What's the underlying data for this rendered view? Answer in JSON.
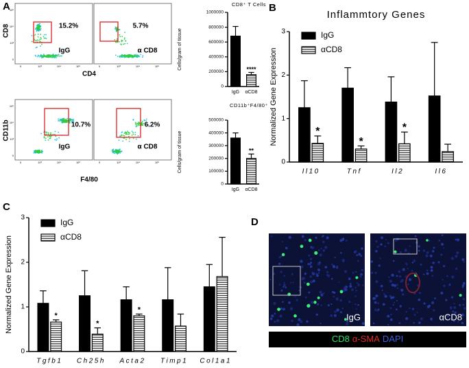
{
  "panels": [
    "A",
    "B",
    "C",
    "D"
  ],
  "flow": {
    "ticks": [
      "0",
      "10³",
      "10⁴",
      "10⁵"
    ],
    "rows": [
      {
        "ylabel": "CD8",
        "xlabel": "CD4"
      },
      {
        "ylabel": "CD11b",
        "xlabel": "F4/80"
      }
    ],
    "plots": [
      {
        "gate": "15.2%",
        "label": "IgG"
      },
      {
        "gate": "5.7%",
        "label": "α CD8"
      },
      {
        "gate": "10.7%",
        "label": "IgG"
      },
      {
        "gate": "6.2%",
        "label": "α CD8"
      }
    ]
  },
  "chart_data": [
    {
      "type": "bar",
      "title": "CD8⁺ T Cells",
      "ylabel": "Cells/gram of tissue",
      "categories": [
        "IgG",
        "αCD8"
      ],
      "values": [
        680000,
        160000
      ],
      "errors": [
        130000,
        30000
      ],
      "significance": [
        null,
        "****"
      ],
      "colors": [
        "#000000",
        "#ffffff"
      ],
      "patterns": [
        null,
        "horizontal-lines"
      ],
      "ylim": [
        0,
        1000000
      ],
      "yticks": [
        0,
        200000,
        400000,
        600000,
        800000,
        1000000
      ]
    },
    {
      "type": "bar",
      "title": "CD11b⁺F4/80⁺",
      "ylabel": "Cells/gram of tissue",
      "categories": [
        "IgG",
        "αCD8"
      ],
      "values": [
        360000,
        200000
      ],
      "errors": [
        40000,
        35000
      ],
      "significance": [
        null,
        "**"
      ],
      "colors": [
        "#000000",
        "#ffffff"
      ],
      "patterns": [
        null,
        "horizontal-lines"
      ],
      "ylim": [
        0,
        500000
      ],
      "yticks": [
        0,
        100000,
        200000,
        300000,
        400000,
        500000
      ]
    },
    {
      "type": "grouped_bar",
      "title": "Inflammtory Genes",
      "ylabel": "Normalized Gene Expression",
      "categories": [
        "Il10",
        "Tnf",
        "Il2",
        "Il6"
      ],
      "legend": "upper left",
      "series": [
        {
          "name": "IgG",
          "color": "#000000",
          "pattern": null,
          "values": [
            1.25,
            1.7,
            1.38,
            1.52
          ],
          "errors": [
            0.62,
            0.47,
            0.58,
            1.23
          ],
          "significance": [
            null,
            null,
            null,
            null
          ]
        },
        {
          "name": "αCD8",
          "color": "#ffffff",
          "pattern": "horizontal-lines",
          "values": [
            0.43,
            0.3,
            0.42,
            0.24
          ],
          "errors": [
            0.17,
            0.07,
            0.27,
            0.17
          ],
          "significance": [
            "*",
            "*",
            "*",
            null
          ]
        }
      ],
      "ylim": [
        0,
        3
      ],
      "yticks": [
        0,
        1,
        2,
        3
      ]
    },
    {
      "type": "grouped_bar",
      "ylabel": "Normalized Gene Expression",
      "categories": [
        "Tgfb1",
        "Ch25h",
        "Acta2",
        "Timp1",
        "Col1a1"
      ],
      "legend": "upper left",
      "series": [
        {
          "name": "IgG",
          "color": "#000000",
          "pattern": null,
          "values": [
            1.08,
            1.25,
            1.16,
            1.16,
            1.45
          ],
          "errors": [
            0.28,
            0.56,
            0.29,
            0.72,
            0.5
          ],
          "significance": [
            null,
            null,
            null,
            null,
            null
          ]
        },
        {
          "name": "αCD8",
          "color": "#ffffff",
          "pattern": "horizontal-lines",
          "values": [
            0.66,
            0.39,
            0.8,
            0.57,
            1.68
          ],
          "errors": [
            0.05,
            0.14,
            0.04,
            0.27,
            0.88
          ],
          "significance": [
            "*",
            "*",
            "*",
            null,
            null
          ]
        }
      ],
      "ylim": [
        0,
        3
      ],
      "yticks": [
        0,
        1,
        2,
        3
      ]
    }
  ],
  "micrographs": {
    "labels": [
      "IgG",
      "αCD8"
    ],
    "stain_legend": [
      "CD8",
      "α-SMA",
      "DAPI"
    ]
  }
}
